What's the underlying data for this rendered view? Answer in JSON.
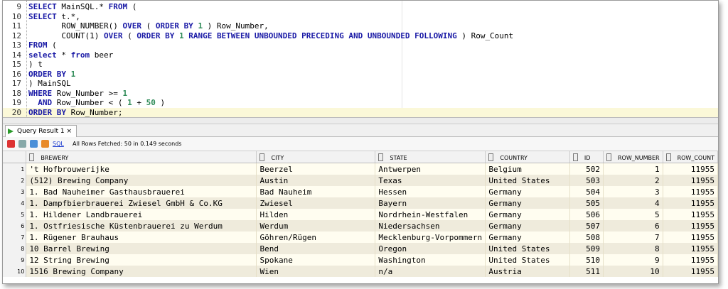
{
  "editor": {
    "lines": [
      {
        "number": 9,
        "tokens": [
          {
            "text": "SELECT",
            "color": "#1a1aa6"
          },
          {
            "text": " MainSQL.* "
          },
          {
            "text": "FROM",
            "color": "#1a1aa6"
          },
          {
            "text": " ("
          }
        ]
      },
      {
        "number": 10,
        "tokens": [
          {
            "text": "SELECT",
            "color": "#1a1aa6"
          },
          {
            "text": " t.*,"
          }
        ]
      },
      {
        "number": 11,
        "tokens": [
          {
            "text": "       ROW_NUMBER() "
          },
          {
            "text": "OVER",
            "color": "#1a1aa6"
          },
          {
            "text": " ( "
          },
          {
            "text": "ORDER BY",
            "color": "#1a1aa6"
          },
          {
            "text": " "
          },
          {
            "text": "1",
            "color": "#2e8b57"
          },
          {
            "text": " ) Row_Number,"
          }
        ]
      },
      {
        "number": 12,
        "tokens": [
          {
            "text": "       COUNT(1) "
          },
          {
            "text": "OVER",
            "color": "#1a1aa6"
          },
          {
            "text": " ( "
          },
          {
            "text": "ORDER BY",
            "color": "#1a1aa6"
          },
          {
            "text": " "
          },
          {
            "text": "1",
            "color": "#2e8b57"
          },
          {
            "text": " "
          },
          {
            "text": "RANGE BETWEEN UNBOUNDED PRECEDING AND UNBOUNDED FOLLOWING",
            "color": "#1a1aa6"
          },
          {
            "text": " ) Row_Count"
          }
        ]
      },
      {
        "number": 13,
        "tokens": [
          {
            "text": "FROM",
            "color": "#1a1aa6"
          },
          {
            "text": " ("
          }
        ]
      },
      {
        "number": 14,
        "tokens": [
          {
            "text": "select",
            "color": "#1a1aa6"
          },
          {
            "text": " * "
          },
          {
            "text": "from",
            "color": "#1a1aa6"
          },
          {
            "text": " beer"
          }
        ]
      },
      {
        "number": 15,
        "tokens": [
          {
            "text": ") t"
          }
        ]
      },
      {
        "number": 16,
        "tokens": [
          {
            "text": "ORDER BY",
            "color": "#1a1aa6"
          },
          {
            "text": " "
          },
          {
            "text": "1",
            "color": "#2e8b57"
          }
        ]
      },
      {
        "number": 17,
        "tokens": [
          {
            "text": ") MainSQL"
          }
        ]
      },
      {
        "number": 18,
        "tokens": [
          {
            "text": "WHERE",
            "color": "#1a1aa6"
          },
          {
            "text": " Row_Number >= "
          },
          {
            "text": "1",
            "color": "#2e8b57"
          }
        ]
      },
      {
        "number": 19,
        "tokens": [
          {
            "text": "  "
          },
          {
            "text": "AND",
            "color": "#1a1aa6"
          },
          {
            "text": " Row_Number < ( "
          },
          {
            "text": "1",
            "color": "#2e8b57"
          },
          {
            "text": " + "
          },
          {
            "text": "50",
            "color": "#2e8b57"
          },
          {
            "text": " )"
          }
        ]
      },
      {
        "number": 20,
        "tokens": [
          {
            "text": "ORDER BY",
            "color": "#1a1aa6"
          },
          {
            "text": " Row_Number;"
          }
        ]
      }
    ]
  },
  "results": {
    "tab": "Query Result 1",
    "close": "×",
    "toolbar": {
      "sql": "SQL",
      "status": "All Rows Fetched: 50 in 0.149 seconds"
    },
    "table": {
      "columns": [
        "BREWERY",
        "CITY",
        "STATE",
        "COUNTRY",
        "ID",
        "ROW_NUMBER",
        "ROW_COUNT"
      ],
      "rows": [
        {
          "index": 1,
          "cells": [
            "'t Hofbrouwerijke",
            "Beerzel",
            "Antwerpen",
            "Belgium",
            502,
            1,
            11955
          ]
        },
        {
          "index": 2,
          "cells": [
            "(512) Brewing Company",
            "Austin",
            "Texas",
            "United States",
            503,
            2,
            11955
          ]
        },
        {
          "index": 3,
          "cells": [
            "1. Bad Nauheimer Gasthausbrauerei",
            "Bad Nauheim",
            "Hessen",
            "Germany",
            504,
            3,
            11955
          ]
        },
        {
          "index": 4,
          "cells": [
            "1. Dampfbierbrauerei Zwiesel GmbH & Co.KG",
            "Zwiesel",
            "Bayern",
            "Germany",
            505,
            4,
            11955
          ]
        },
        {
          "index": 5,
          "cells": [
            "1. Hildener Landbrauerei",
            "Hilden",
            "Nordrhein-Westfalen",
            "Germany",
            506,
            5,
            11955
          ]
        },
        {
          "index": 6,
          "cells": [
            "1. Ostfriesische Küstenbrauerei zu Werdum",
            "Werdum",
            "Niedersachsen",
            "Germany",
            507,
            6,
            11955
          ]
        },
        {
          "index": 7,
          "cells": [
            "1. Rügener Brauhaus",
            "Göhren/Rügen",
            "Mecklenburg-Vorpommern",
            "Germany",
            508,
            7,
            11955
          ]
        },
        {
          "index": 8,
          "cells": [
            "10 Barrel Brewing",
            "Bend",
            "Oregon",
            "United States",
            509,
            8,
            11955
          ]
        },
        {
          "index": 9,
          "cells": [
            "12 String Brewing",
            "Spokane",
            "Washington",
            "United States",
            510,
            9,
            11955
          ]
        },
        {
          "index": 10,
          "cells": [
            "1516 Brewing Company",
            "Wien",
            "n/a",
            "Austria",
            511,
            10,
            11955
          ]
        }
      ]
    }
  }
}
